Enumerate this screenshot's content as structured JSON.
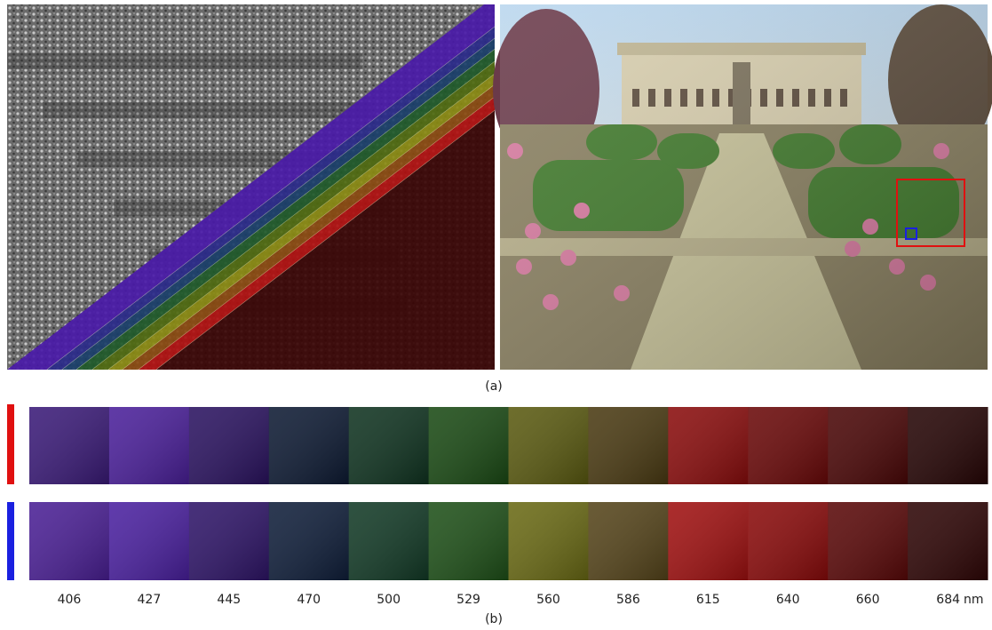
{
  "figure": {
    "panel_a_label": "(a)",
    "panel_b_label": "(b)",
    "wavelengths": [
      406,
      427,
      445,
      470,
      500,
      529,
      560,
      586,
      615,
      640,
      660,
      684
    ],
    "unit": "nm"
  }
}
